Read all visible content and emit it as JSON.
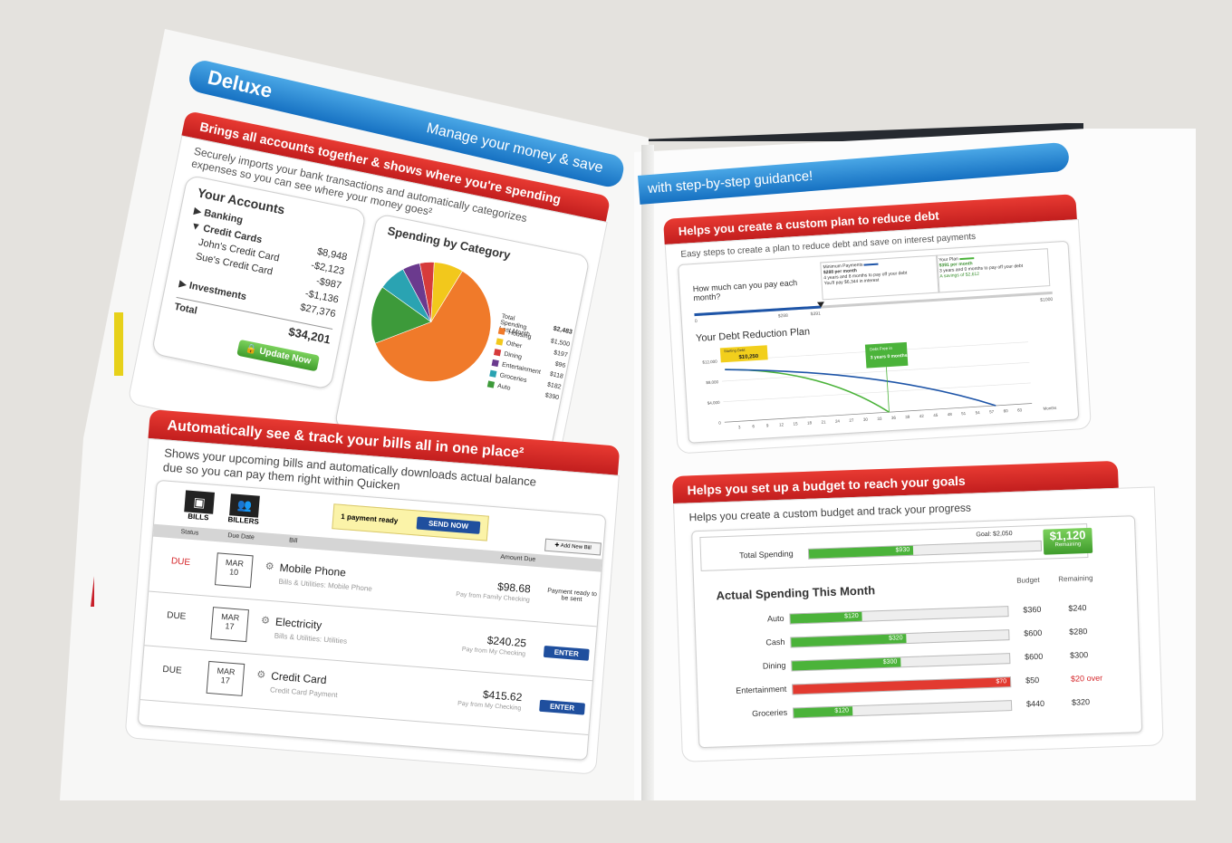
{
  "left": {
    "banner_title": "Deluxe",
    "banner_tagline": "Manage your money & save",
    "accounts_header": "Brings all accounts together & shows where you're spending",
    "accounts_desc_1": "Securely imports your bank transactions and automatically categorizes",
    "accounts_desc_2": "expenses so you can see where your money goes²",
    "your_accounts": {
      "title": "Your Accounts",
      "rows": [
        {
          "label": "Banking",
          "value": ""
        },
        {
          "label": "Credit Cards",
          "value": "$8,948"
        },
        {
          "label": "John's Credit Card",
          "value": "-$2,123"
        },
        {
          "label": "Sue's Credit Card",
          "value": "-$987"
        },
        {
          "label": "",
          "value": "-$1,136"
        },
        {
          "label": "Investments",
          "value": "$27,376"
        },
        {
          "label": "Total",
          "value": "$34,201"
        }
      ],
      "button": "Update Now"
    },
    "spending": {
      "title": "Spending by Category",
      "legend_header": "Total Spending Last Month",
      "legend_total": "$2,483",
      "legend": [
        {
          "name": "Housing",
          "value": "$1,500",
          "color": "#f07a2a"
        },
        {
          "name": "Other",
          "value": "$197",
          "color": "#f2c81c"
        },
        {
          "name": "Dining",
          "value": "$96",
          "color": "#d63b3b"
        },
        {
          "name": "Entertainment",
          "value": "$118",
          "color": "#6b3a8e"
        },
        {
          "name": "Groceries",
          "value": "$182",
          "color": "#2aa3b2"
        },
        {
          "name": "Auto",
          "value": "$390",
          "color": "#3d9a3a"
        }
      ]
    },
    "bills_header": "Automatically see & track your bills all in one place²",
    "bills_desc_1": "Shows your upcoming bills and automatically downloads actual balance",
    "bills_desc_2": "due so you can pay them right within Quicken",
    "bills": {
      "tab_bills": "BILLS",
      "tab_billers": "BILLERS",
      "payment_ready": "1 payment ready",
      "send_now": "SEND NOW",
      "add_new": "Add New Bill",
      "col_status": "Status",
      "col_due": "Due Date",
      "col_bill": "Bill",
      "col_amount": "Amount Due",
      "rows": [
        {
          "status": "DUE",
          "month": "MAR",
          "day": "10",
          "name": "Mobile Phone",
          "cat": "Bills & Utilities: Mobile Phone",
          "amount": "$98.68",
          "pay": "Pay from Family Checking",
          "action": "Payment ready to be sent"
        },
        {
          "status": "DUE",
          "month": "MAR",
          "day": "17",
          "name": "Electricity",
          "cat": "Bills & Utilities: Utilities",
          "amount": "$240.25",
          "pay": "Pay from My Checking",
          "action": "ENTER"
        },
        {
          "status": "DUE",
          "month": "MAR",
          "day": "17",
          "name": "Credit Card",
          "cat": "Credit Card Payment",
          "amount": "$415.62",
          "pay": "Pay from My Checking",
          "action": "ENTER"
        }
      ]
    }
  },
  "right": {
    "banner_tagline": "with step-by-step guidance!",
    "debt_header": "Helps you create a custom plan to reduce debt",
    "debt_desc": "Easy steps to create a plan to reduce debt and save on interest payments",
    "debt": {
      "question": "How much can you pay each month?",
      "min_label": "Minimum Payments",
      "min_1": "$288 per month",
      "min_2": "4 years and 8 months to pay off your debt",
      "min_3": "You'll pay $6,344 in interest",
      "plan_label": "Your Plan",
      "plan_1": "$391 per month",
      "plan_2": "3 years and 0 months to pay off your debt",
      "plan_3": "A savings of $2,612",
      "slider_min": "0",
      "slider_a": "$288",
      "slider_b": "$391",
      "slider_max": "$1000",
      "plan_title": "Your Debt Reduction Plan",
      "start_label": "Starting Debt:",
      "start_value": "$10,250",
      "free_label": "Debt Free in",
      "free_value": "3 years 0 months",
      "y_ticks": [
        "$12,000",
        "$8,000",
        "$4,000",
        "0"
      ],
      "x_ticks": [
        "3",
        "6",
        "9",
        "12",
        "15",
        "18",
        "21",
        "24",
        "27",
        "30",
        "33",
        "36",
        "39",
        "42",
        "45",
        "48",
        "51",
        "54",
        "57",
        "60",
        "63"
      ],
      "x_label": "Months"
    },
    "budget_header": "Helps you set up a budget to reach your goals",
    "budget_desc": "Helps you create a custom budget and track your progress",
    "budget": {
      "total_label": "Total Spending",
      "total_value": "$930",
      "goal": "Goal: $2,050",
      "remaining_amount": "$1,120",
      "remaining_label": "Remaining",
      "section_title": "Actual Spending This Month",
      "col_budget": "Budget",
      "col_remaining": "Remaining",
      "rows": [
        {
          "name": "Auto",
          "spent": "$120",
          "budget": "$360",
          "remaining": "$240",
          "fill": 0.33,
          "color": "#4bb33a"
        },
        {
          "name": "Cash",
          "spent": "$320",
          "budget": "$600",
          "remaining": "$280",
          "fill": 0.53,
          "color": "#4bb33a"
        },
        {
          "name": "Dining",
          "spent": "$300",
          "budget": "$600",
          "remaining": "$300",
          "fill": 0.5,
          "color": "#4bb33a"
        },
        {
          "name": "Entertainment",
          "spent": "$70",
          "budget": "$50",
          "remaining": "$20 over",
          "fill": 1.0,
          "color": "#e23a30"
        },
        {
          "name": "Groceries",
          "spent": "$120",
          "budget": "$440",
          "remaining": "$320",
          "fill": 0.27,
          "color": "#4bb33a"
        }
      ]
    }
  }
}
